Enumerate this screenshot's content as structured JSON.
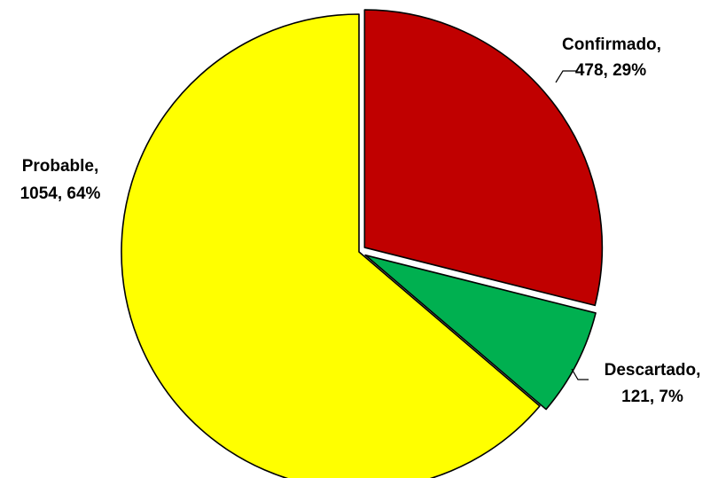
{
  "chart_data": {
    "type": "pie",
    "categories": [
      "Confirmado",
      "Descartado",
      "Probable"
    ],
    "values": [
      478,
      121,
      1054
    ],
    "percent_labels": [
      "29%",
      "7%",
      "64%"
    ],
    "colors": [
      "#C00000",
      "#00B050",
      "#FFFF00"
    ],
    "data_labels": [
      {
        "name_line": "Confirmado,",
        "value_line": "478, 29%"
      },
      {
        "name_line": "Descartado,",
        "value_line": "121, 7%"
      },
      {
        "name_line": "Probable,",
        "value_line": "1054, 64%"
      }
    ],
    "start_angle_deg": 0,
    "direction": "clockwise",
    "exploded": true,
    "legend": "none"
  }
}
